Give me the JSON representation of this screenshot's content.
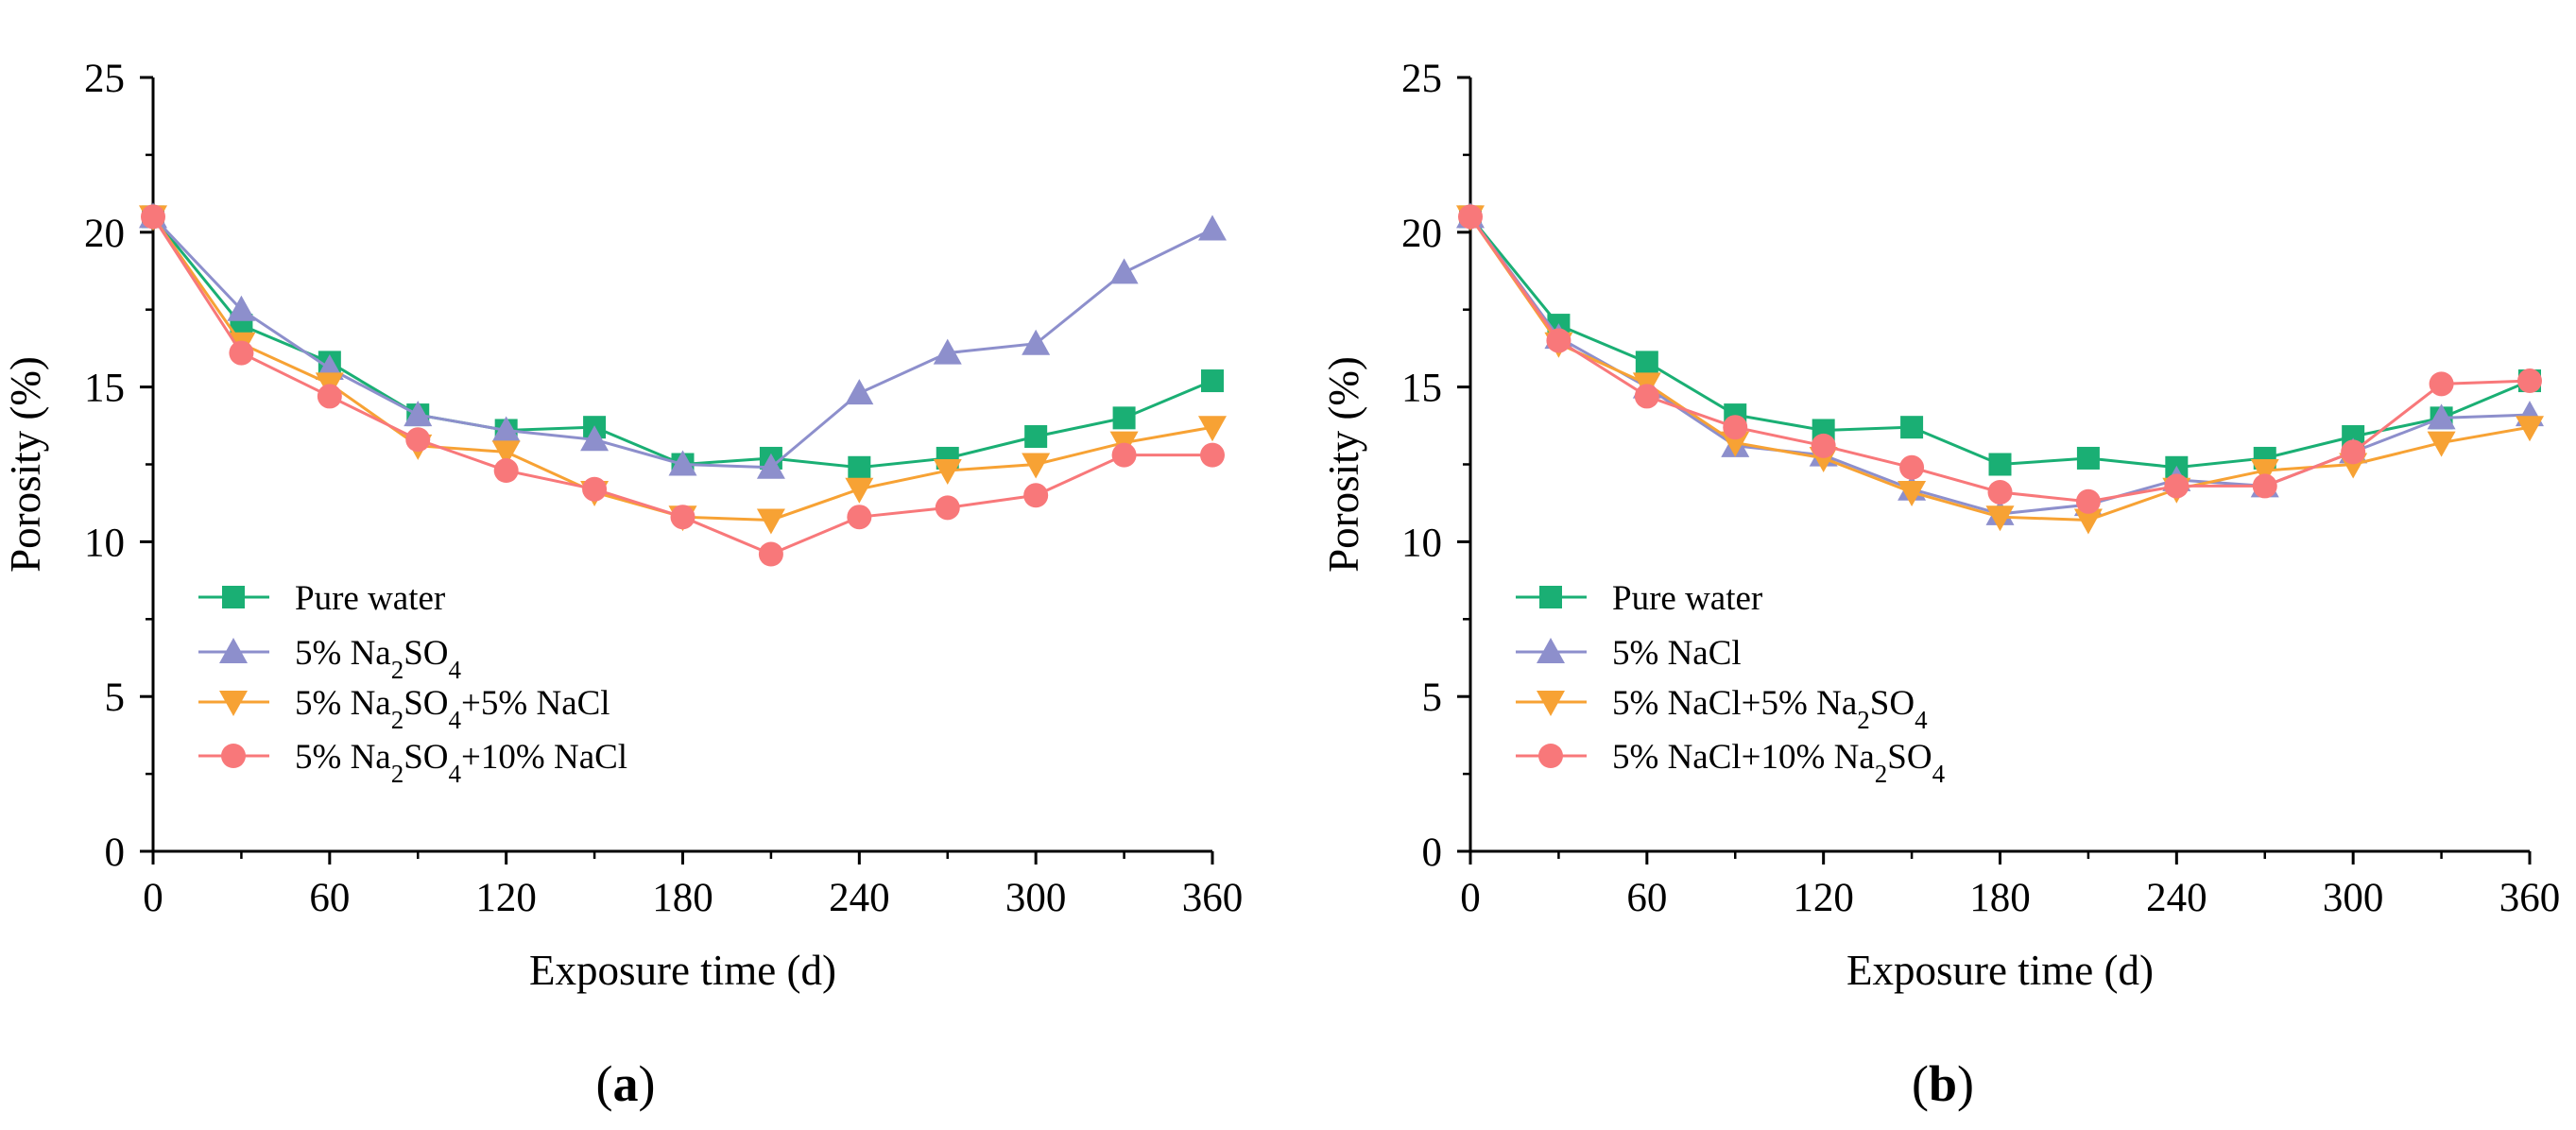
{
  "chart_data": [
    {
      "type": "line",
      "panel_label": "a",
      "xlabel": "Exposure time (d)",
      "ylabel": "Porosity (%)",
      "xlim": [
        0,
        360
      ],
      "ylim": [
        0,
        25
      ],
      "xticks": [
        0,
        60,
        120,
        180,
        240,
        300,
        360
      ],
      "yticks": [
        0,
        5,
        10,
        15,
        20,
        25
      ],
      "x": [
        0,
        30,
        60,
        90,
        120,
        150,
        180,
        210,
        240,
        270,
        300,
        330,
        360
      ],
      "legend_position": "lower-left",
      "series": [
        {
          "name": "Pure water",
          "legend": [
            {
              "t": "Pure water"
            }
          ],
          "color": "#1aaf74",
          "marker": "square",
          "values": [
            20.5,
            17.0,
            15.8,
            14.1,
            13.6,
            13.7,
            12.5,
            12.7,
            12.4,
            12.7,
            13.4,
            14.0,
            15.2
          ]
        },
        {
          "name": "5% Na2SO4",
          "legend": [
            {
              "t": "5% Na"
            },
            {
              "t": "2",
              "sub": true
            },
            {
              "t": "SO"
            },
            {
              "t": "4",
              "sub": true
            }
          ],
          "color": "#8d8fcc",
          "marker": "triangle-up",
          "values": [
            20.5,
            17.5,
            15.6,
            14.1,
            13.6,
            13.3,
            12.5,
            12.4,
            14.8,
            16.1,
            16.4,
            18.7,
            20.1
          ]
        },
        {
          "name": "5% Na2SO4+5% NaCl",
          "legend": [
            {
              "t": "5% Na"
            },
            {
              "t": "2",
              "sub": true
            },
            {
              "t": "SO"
            },
            {
              "t": "4",
              "sub": true
            },
            {
              "t": "+5% NaCl"
            }
          ],
          "color": "#f7a234",
          "marker": "triangle-down",
          "values": [
            20.5,
            16.4,
            15.1,
            13.1,
            12.9,
            11.6,
            10.8,
            10.7,
            11.7,
            12.3,
            12.5,
            13.2,
            13.7
          ]
        },
        {
          "name": "5% Na2SO4+10% NaCl",
          "legend": [
            {
              "t": "5% Na"
            },
            {
              "t": "2",
              "sub": true
            },
            {
              "t": "SO"
            },
            {
              "t": "4",
              "sub": true
            },
            {
              "t": "+10% NaCl"
            }
          ],
          "color": "#f8787a",
          "marker": "circle",
          "values": [
            20.5,
            16.1,
            14.7,
            13.3,
            12.3,
            11.7,
            10.8,
            9.6,
            10.8,
            11.1,
            11.5,
            12.8,
            12.8
          ]
        }
      ]
    },
    {
      "type": "line",
      "panel_label": "b",
      "xlabel": "Exposure time (d)",
      "ylabel": "Porosity (%)",
      "xlim": [
        0,
        360
      ],
      "ylim": [
        0,
        25
      ],
      "xticks": [
        0,
        60,
        120,
        180,
        240,
        300,
        360
      ],
      "yticks": [
        0,
        5,
        10,
        15,
        20,
        25
      ],
      "x": [
        0,
        30,
        60,
        90,
        120,
        150,
        180,
        210,
        240,
        270,
        300,
        330,
        360
      ],
      "legend_position": "lower-left",
      "series": [
        {
          "name": "Pure water",
          "legend": [
            {
              "t": "Pure water"
            }
          ],
          "color": "#1aaf74",
          "marker": "square",
          "values": [
            20.5,
            17.0,
            15.8,
            14.1,
            13.6,
            13.7,
            12.5,
            12.7,
            12.4,
            12.7,
            13.4,
            14.0,
            15.2
          ]
        },
        {
          "name": "5% NaCl",
          "legend": [
            {
              "t": "5% NaCl"
            }
          ],
          "color": "#8d8fcc",
          "marker": "triangle-up",
          "values": [
            20.5,
            16.6,
            15.0,
            13.1,
            12.8,
            11.7,
            10.9,
            11.2,
            12.0,
            11.8,
            12.9,
            14.0,
            14.1
          ]
        },
        {
          "name": "5% NaCl+5% Na2SO4",
          "legend": [
            {
              "t": "5% NaCl+5% Na"
            },
            {
              "t": "2",
              "sub": true
            },
            {
              "t": "SO"
            },
            {
              "t": "4",
              "sub": true
            }
          ],
          "color": "#f7a234",
          "marker": "triangle-down",
          "values": [
            20.5,
            16.4,
            15.1,
            13.2,
            12.7,
            11.6,
            10.8,
            10.7,
            11.7,
            12.3,
            12.5,
            13.2,
            13.7
          ]
        },
        {
          "name": "5% NaCl+10% Na2SO4",
          "legend": [
            {
              "t": "5% NaCl+10% Na"
            },
            {
              "t": "2",
              "sub": true
            },
            {
              "t": "SO"
            },
            {
              "t": "4",
              "sub": true
            }
          ],
          "color": "#f8787a",
          "marker": "circle",
          "values": [
            20.5,
            16.5,
            14.7,
            13.7,
            13.1,
            12.4,
            11.6,
            11.3,
            11.8,
            11.8,
            12.9,
            15.1,
            15.2
          ]
        }
      ]
    }
  ]
}
